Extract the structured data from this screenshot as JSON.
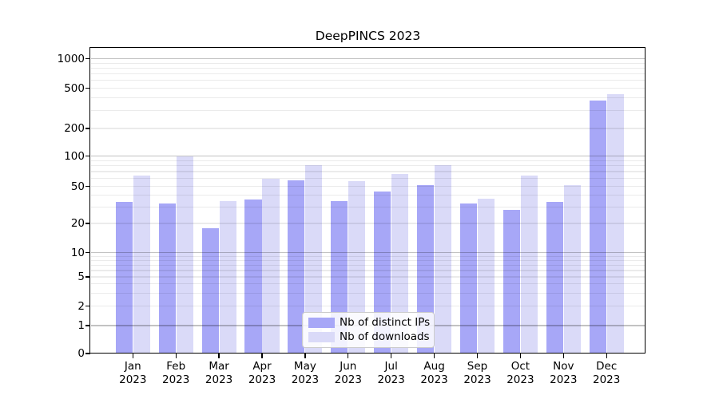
{
  "title": "DeepPINCS 2023",
  "chart_data": {
    "type": "bar",
    "title": "DeepPINCS 2023",
    "categories": [
      "Jan 2023",
      "Feb 2023",
      "Mar 2023",
      "Apr 2023",
      "May 2023",
      "Jun 2023",
      "Jul 2023",
      "Aug 2023",
      "Sep 2023",
      "Oct 2023",
      "Nov 2023",
      "Dec 2023"
    ],
    "series": [
      {
        "name": "Nb of distinct IPs",
        "color": "#a7a7f7",
        "values": [
          34,
          33,
          18,
          36,
          57,
          35,
          44,
          51,
          33,
          28,
          34,
          380
        ]
      },
      {
        "name": "Nb of downloads",
        "color": "#dadaf8",
        "values": [
          64,
          100,
          35,
          60,
          81,
          56,
          66,
          81,
          37,
          64,
          51,
          440
        ]
      }
    ],
    "xlabel": "",
    "ylabel": "",
    "yscale": "symlog",
    "yticks": [
      0,
      1,
      2,
      5,
      10,
      20,
      50,
      100,
      200,
      500,
      1000
    ],
    "ylim": [
      0,
      1300
    ],
    "grid": "both",
    "grid_major_color": "#c2c2c2",
    "grid_minor_color": "#ebebeb",
    "legend_position": "lower center",
    "legend_items": [
      "Nb of distinct IPs",
      "Nb of downloads"
    ]
  }
}
